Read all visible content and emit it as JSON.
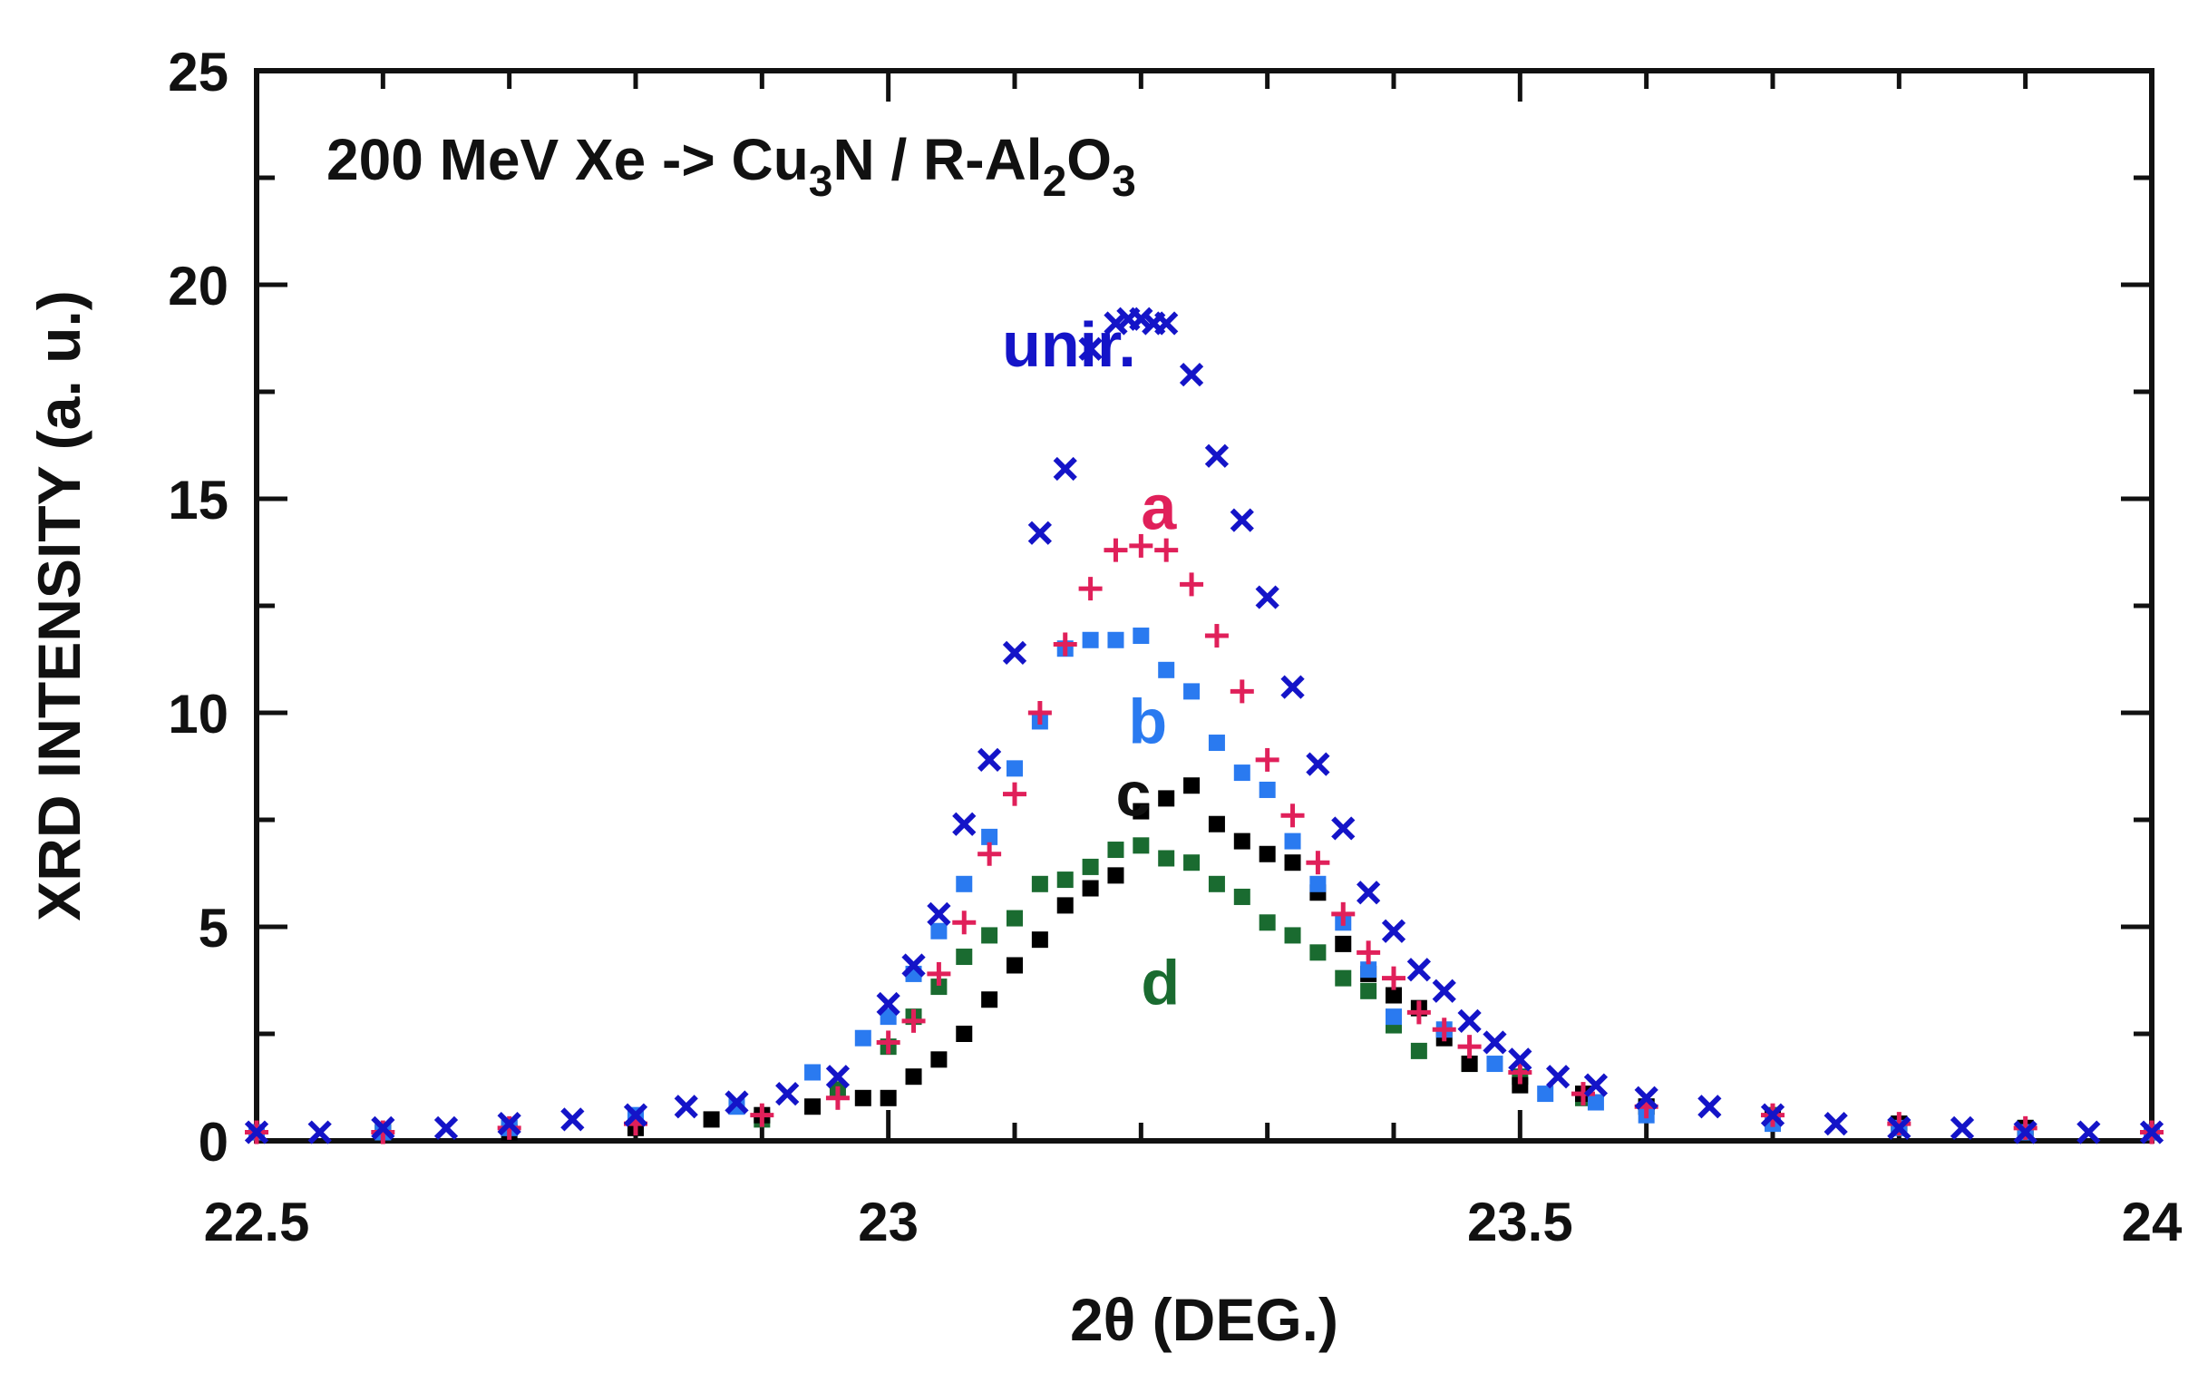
{
  "chart_data": {
    "type": "scatter",
    "title": "",
    "annotation": {
      "prefix": "200 MeV Xe -> Cu",
      "sub1": "3",
      "mid": "N / R-Al",
      "sub2": "2",
      "mid2": "O",
      "sub3": "3"
    },
    "xlabel": "2θ  (DEG.)",
    "ylabel": "XRD  INTENSITY (a. u.)",
    "xlim": [
      22.5,
      24
    ],
    "ylim": [
      0,
      25
    ],
    "xticks": [
      "22.5",
      "23",
      "23.5",
      "24"
    ],
    "yticks": [
      "0",
      "5",
      "10",
      "15",
      "20",
      "25"
    ],
    "grid": false,
    "series": [
      {
        "name": "unir.",
        "marker": "x",
        "color": "#1414c8",
        "x": [
          22.5,
          22.55,
          22.6,
          22.65,
          22.7,
          22.75,
          22.8,
          22.84,
          22.88,
          22.92,
          22.96,
          23.0,
          23.02,
          23.04,
          23.06,
          23.08,
          23.1,
          23.12,
          23.14,
          23.16,
          23.18,
          23.19,
          23.2,
          23.21,
          23.22,
          23.24,
          23.26,
          23.28,
          23.3,
          23.32,
          23.34,
          23.36,
          23.38,
          23.4,
          23.42,
          23.44,
          23.46,
          23.48,
          23.5,
          23.53,
          23.56,
          23.6,
          23.65,
          23.7,
          23.75,
          23.8,
          23.85,
          23.9,
          23.95,
          24.0
        ],
        "y": [
          0.2,
          0.2,
          0.3,
          0.3,
          0.4,
          0.5,
          0.6,
          0.8,
          0.9,
          1.1,
          1.5,
          3.2,
          4.1,
          5.3,
          7.4,
          8.9,
          11.4,
          14.2,
          15.7,
          18.5,
          19.1,
          19.2,
          19.2,
          19.1,
          19.1,
          17.9,
          16.0,
          14.5,
          12.7,
          10.6,
          8.8,
          7.3,
          5.8,
          4.9,
          4.0,
          3.5,
          2.8,
          2.3,
          1.9,
          1.5,
          1.3,
          1.0,
          0.8,
          0.6,
          0.4,
          0.3,
          0.3,
          0.2,
          0.2,
          0.2
        ]
      },
      {
        "name": "a",
        "marker": "+",
        "color": "#e0205a",
        "x": [
          22.5,
          22.6,
          22.7,
          22.8,
          22.9,
          22.96,
          23.0,
          23.02,
          23.04,
          23.06,
          23.08,
          23.1,
          23.12,
          23.14,
          23.16,
          23.18,
          23.2,
          23.22,
          23.24,
          23.26,
          23.28,
          23.3,
          23.32,
          23.34,
          23.36,
          23.38,
          23.4,
          23.42,
          23.44,
          23.46,
          23.5,
          23.55,
          23.6,
          23.7,
          23.8,
          23.9,
          24.0
        ],
        "y": [
          0.2,
          0.2,
          0.3,
          0.4,
          0.6,
          1.0,
          2.3,
          2.8,
          3.9,
          5.1,
          6.7,
          8.1,
          10.0,
          11.6,
          12.9,
          13.8,
          13.9,
          13.8,
          13.0,
          11.8,
          10.5,
          8.9,
          7.6,
          6.5,
          5.3,
          4.4,
          3.8,
          3.0,
          2.6,
          2.2,
          1.6,
          1.1,
          0.8,
          0.6,
          0.4,
          0.3,
          0.2
        ]
      },
      {
        "name": "b",
        "marker": "square",
        "color": "#2a7af0",
        "x": [
          22.5,
          22.6,
          22.7,
          22.8,
          22.88,
          22.94,
          22.98,
          23.0,
          23.02,
          23.04,
          23.06,
          23.08,
          23.1,
          23.12,
          23.14,
          23.16,
          23.18,
          23.2,
          23.22,
          23.24,
          23.26,
          23.28,
          23.3,
          23.32,
          23.34,
          23.36,
          23.38,
          23.4,
          23.44,
          23.48,
          23.52,
          23.56,
          23.6,
          23.7,
          23.8,
          23.9,
          24.0
        ],
        "y": [
          0.2,
          0.2,
          0.3,
          0.6,
          0.8,
          1.6,
          2.4,
          2.9,
          3.9,
          4.9,
          6.0,
          7.1,
          8.7,
          9.8,
          11.5,
          11.7,
          11.7,
          11.8,
          11.0,
          10.5,
          9.3,
          8.6,
          8.2,
          7.0,
          6.0,
          5.1,
          4.0,
          2.9,
          2.6,
          1.8,
          1.1,
          0.9,
          0.6,
          0.4,
          0.3,
          0.2,
          0.2
        ]
      },
      {
        "name": "c",
        "marker": "square",
        "color": "#000000",
        "x": [
          22.5,
          22.6,
          22.7,
          22.8,
          22.86,
          22.9,
          22.94,
          22.98,
          23.0,
          23.02,
          23.04,
          23.06,
          23.08,
          23.1,
          23.12,
          23.14,
          23.16,
          23.18,
          23.2,
          23.22,
          23.24,
          23.26,
          23.28,
          23.3,
          23.32,
          23.34,
          23.36,
          23.38,
          23.4,
          23.42,
          23.44,
          23.46,
          23.5,
          23.55,
          23.6,
          23.7,
          23.8,
          23.9,
          24.0
        ],
        "y": [
          0.2,
          0.2,
          0.2,
          0.3,
          0.5,
          0.6,
          0.8,
          1.0,
          1.0,
          1.5,
          1.9,
          2.5,
          3.3,
          4.1,
          4.7,
          5.5,
          5.9,
          6.2,
          7.7,
          8.0,
          8.3,
          7.4,
          7.0,
          6.7,
          6.5,
          5.8,
          4.6,
          3.9,
          3.4,
          3.1,
          2.4,
          1.8,
          1.3,
          1.1,
          0.8,
          0.5,
          0.4,
          0.3,
          0.2
        ]
      },
      {
        "name": "d",
        "marker": "square",
        "color": "#1a6b30",
        "x": [
          22.5,
          22.6,
          22.7,
          22.8,
          22.9,
          22.96,
          23.0,
          23.02,
          23.04,
          23.06,
          23.08,
          23.1,
          23.12,
          23.14,
          23.16,
          23.18,
          23.2,
          23.22,
          23.24,
          23.26,
          23.28,
          23.3,
          23.32,
          23.34,
          23.36,
          23.38,
          23.4,
          23.42,
          23.46,
          23.5,
          23.55,
          23.6,
          23.7,
          23.8,
          23.9,
          24.0
        ],
        "y": [
          0.2,
          0.2,
          0.3,
          0.4,
          0.5,
          1.2,
          2.2,
          2.9,
          3.6,
          4.3,
          4.8,
          5.2,
          6.0,
          6.1,
          6.4,
          6.8,
          6.9,
          6.6,
          6.5,
          6.0,
          5.7,
          5.1,
          4.8,
          4.4,
          3.8,
          3.5,
          2.7,
          2.1,
          1.8,
          1.5,
          1.0,
          0.8,
          0.6,
          0.4,
          0.3,
          0.2
        ]
      }
    ],
    "labels": [
      {
        "text": "unir.",
        "x": 23.09,
        "y": 18.6,
        "color": "#1414c8"
      },
      {
        "text": "a",
        "x": 23.2,
        "y": 14.8,
        "color": "#e0205a"
      },
      {
        "text": "b",
        "x": 23.19,
        "y": 9.8,
        "color": "#2a7af0"
      },
      {
        "text": "c",
        "x": 23.18,
        "y": 8.1,
        "color": "#111111"
      },
      {
        "text": "d",
        "x": 23.2,
        "y": 3.7,
        "color": "#1a6b30"
      }
    ]
  }
}
